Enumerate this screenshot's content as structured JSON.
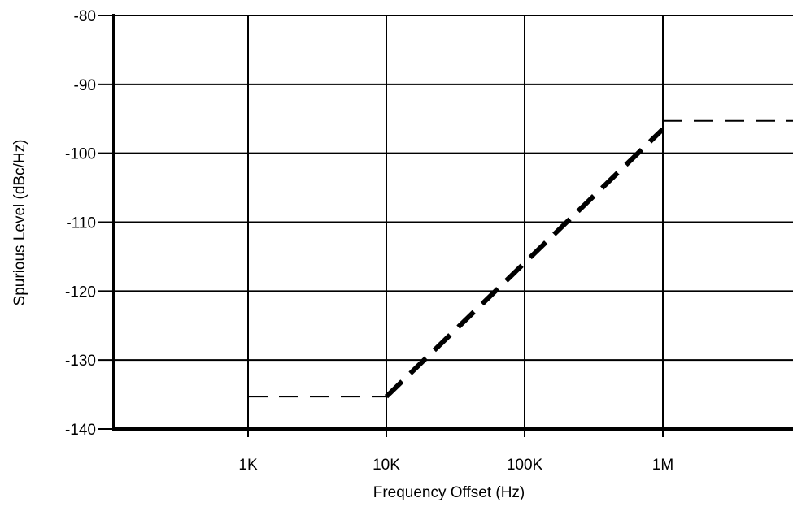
{
  "chart_data": {
    "type": "line",
    "xlabel": "Frequency Offset (Hz)",
    "ylabel": "Spurious Level (dBc/Hz)",
    "x_scale": "log",
    "xlim": [
      100,
      10000000
    ],
    "ylim": [
      -140,
      -80
    ],
    "grid": true,
    "x_ticks": [
      {
        "value": 1000,
        "label": "1K"
      },
      {
        "value": 10000,
        "label": "10K"
      },
      {
        "value": 100000,
        "label": "100K"
      },
      {
        "value": 1000000,
        "label": "1M"
      }
    ],
    "y_ticks": [
      {
        "value": -80,
        "label": "-80"
      },
      {
        "value": -90,
        "label": "-90"
      },
      {
        "value": -100,
        "label": "-100"
      },
      {
        "value": -110,
        "label": "-110"
      },
      {
        "value": -120,
        "label": "-120"
      },
      {
        "value": -130,
        "label": "-130"
      },
      {
        "value": -140,
        "label": "-140"
      }
    ],
    "series": [
      {
        "style": "thin-dashed",
        "points": [
          [
            1000,
            -135.3
          ],
          [
            10000,
            -135.3
          ]
        ]
      },
      {
        "style": "thick-dashed",
        "points": [
          [
            10000,
            -135.3
          ],
          [
            1000000,
            -96.5
          ]
        ]
      },
      {
        "style": "thin-dashed",
        "points": [
          [
            1000000,
            -95.3
          ],
          [
            10000000,
            -95.3
          ]
        ]
      }
    ],
    "colors": {
      "line": "#000000",
      "grid": "#000000",
      "background": "#ffffff"
    }
  }
}
